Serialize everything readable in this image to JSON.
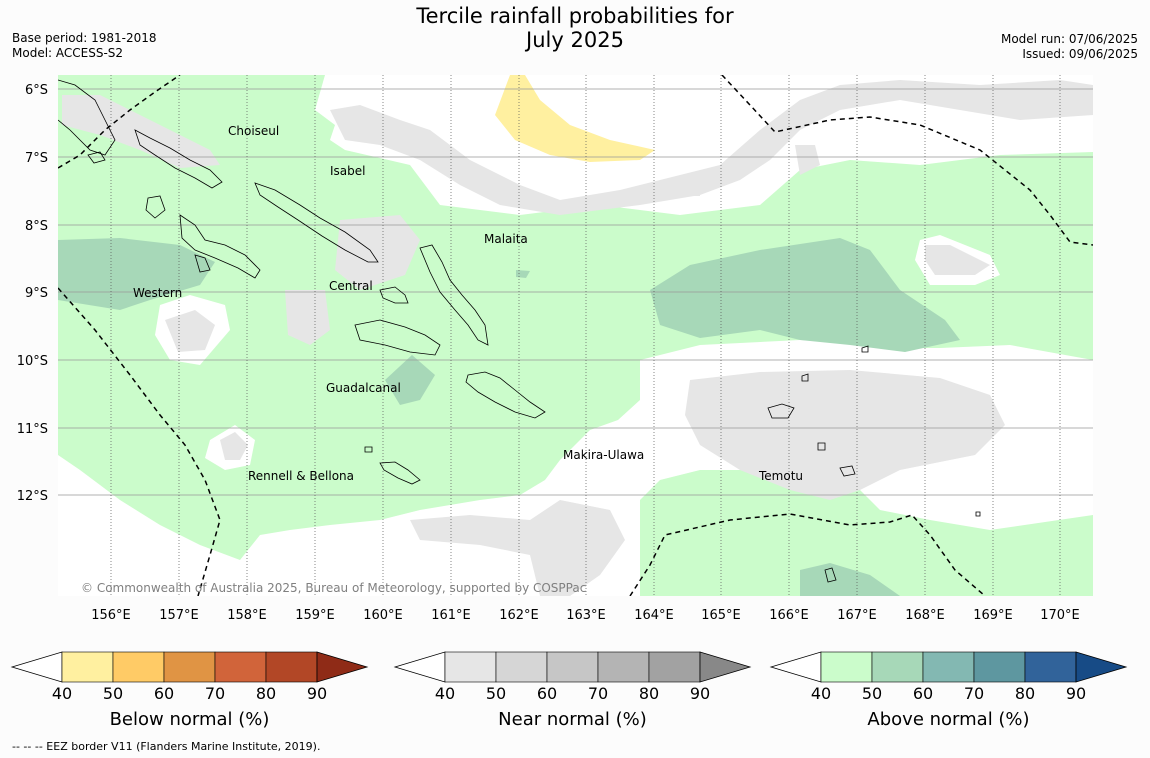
{
  "title_line1": "Tercile rainfall probabilities for",
  "title_line2": "July 2025",
  "base_period": "Base period: 1981-2018",
  "model": "Model: ACCESS-S2",
  "model_run": "Model run: 07/06/2025",
  "issued": "Issued: 09/06/2025",
  "copyright": "© Commonwealth of Australia 2025, Bureau of Meteorology, supported by COSPPac",
  "footnote": "-- -- -- EEZ border V11 (Flanders Marine Institute, 2019).",
  "lat_labels": [
    "6°S",
    "7°S",
    "8°S",
    "9°S",
    "10°S",
    "11°S",
    "12°S"
  ],
  "lon_labels": [
    "156°E",
    "157°E",
    "158°E",
    "159°E",
    "160°E",
    "161°E",
    "162°E",
    "163°E",
    "164°E",
    "165°E",
    "166°E",
    "167°E",
    "168°E",
    "169°E",
    "170°E"
  ],
  "provinces": {
    "choiseul": "Choiseul",
    "isabel": "Isabel",
    "malaita": "Malaita",
    "western": "Western",
    "central": "Central",
    "guadalcanal": "Guadalcanal",
    "makira": "Makira-Ulawa",
    "temotu": "Temotu",
    "rennell": "Rennell & Bellona"
  },
  "colorbars": {
    "below": {
      "title": "Below normal (%)",
      "colors": [
        "#fff0a0",
        "#ffcb66",
        "#e09444",
        "#d1643a",
        "#b24726",
        "#8f2b17"
      ]
    },
    "near": {
      "title": "Near normal (%)",
      "colors": [
        "#e6e6e6",
        "#d6d6d6",
        "#c6c6c6",
        "#b4b4b4",
        "#a2a2a2",
        "#888888"
      ]
    },
    "above": {
      "title": "Above normal (%)",
      "colors": [
        "#cbfccb",
        "#a7d8b8",
        "#83b8b2",
        "#5e97a0",
        "#31639a",
        "#174b86"
      ]
    },
    "ticks": [
      "40",
      "50",
      "60",
      "70",
      "80",
      "90"
    ]
  }
}
